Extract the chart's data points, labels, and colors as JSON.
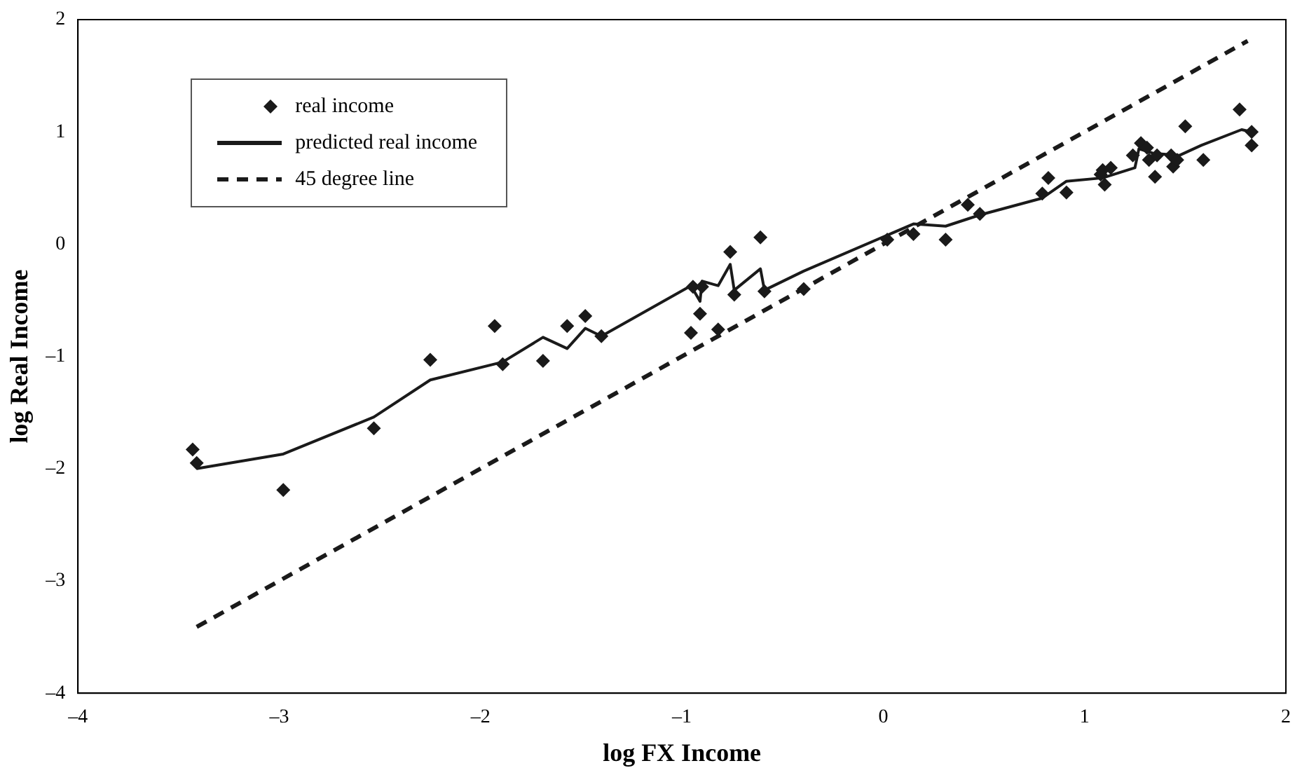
{
  "chart_data": {
    "type": "scatter",
    "xlabel": "log FX Income",
    "ylabel": "log Real Income",
    "xlim": [
      -4,
      2
    ],
    "ylim": [
      -4,
      2
    ],
    "xticks": [
      {
        "value": -4,
        "label": "–4"
      },
      {
        "value": -3,
        "label": "–3"
      },
      {
        "value": -2,
        "label": "–2"
      },
      {
        "value": -1,
        "label": "–1"
      },
      0,
      1,
      2
    ],
    "yticks": [
      {
        "value": -4,
        "label": "–4"
      },
      {
        "value": -3,
        "label": "–3"
      },
      {
        "value": -2,
        "label": "–2"
      },
      {
        "value": -1,
        "label": "–1"
      },
      0,
      1,
      2
    ],
    "grid": false,
    "legend": "top left",
    "series": [
      {
        "name": "real income",
        "marker": "diamond",
        "color": "#1a1a1a",
        "x": [
          -3.43,
          -3.41,
          -2.98,
          -2.53,
          -2.25,
          -1.93,
          -1.89,
          -1.69,
          -1.57,
          -1.48,
          -1.4,
          -0.955,
          -0.945,
          -0.9,
          -0.91,
          -0.82,
          -0.76,
          -0.74,
          -0.61,
          -0.59,
          -0.395,
          0.02,
          0.15,
          0.31,
          0.42,
          0.48,
          0.82,
          0.79,
          0.91,
          1.09,
          1.13,
          1.1,
          1.08,
          1.24,
          1.28,
          1.31,
          1.32,
          1.36,
          1.35,
          1.43,
          1.44,
          1.46,
          1.5,
          1.59,
          1.77,
          1.83,
          1.83
        ],
        "values": [
          -1.83,
          -1.95,
          -2.19,
          -1.64,
          -1.03,
          -0.73,
          -1.07,
          -1.04,
          -0.73,
          -0.64,
          -0.82,
          -0.79,
          -0.38,
          -0.38,
          -0.62,
          -0.76,
          -0.07,
          -0.45,
          0.06,
          -0.42,
          -0.4,
          0.04,
          0.09,
          0.04,
          0.35,
          0.27,
          0.59,
          0.45,
          0.46,
          0.66,
          0.68,
          0.53,
          0.62,
          0.79,
          0.9,
          0.86,
          0.75,
          0.79,
          0.6,
          0.79,
          0.69,
          0.75,
          1.05,
          0.75,
          1.2,
          1.0,
          0.88
        ]
      },
      {
        "name": "predicted real income",
        "type": "line",
        "marker": "none",
        "line_style": "solid",
        "color": "#1a1a1a",
        "x": [
          -3.41,
          -2.98,
          -2.53,
          -2.25,
          -1.89,
          -1.69,
          -1.57,
          -1.48,
          -1.4,
          -0.955,
          -0.91,
          -0.9,
          -0.82,
          -0.76,
          -0.74,
          -0.61,
          -0.59,
          -0.395,
          0.15,
          0.31,
          0.48,
          0.79,
          0.91,
          1.09,
          1.25,
          1.27,
          1.34,
          1.47,
          1.58,
          1.78,
          1.83
        ],
        "values": [
          -2.0,
          -1.87,
          -1.54,
          -1.21,
          -1.05,
          -0.83,
          -0.93,
          -0.75,
          -0.82,
          -0.37,
          -0.51,
          -0.33,
          -0.37,
          -0.18,
          -0.41,
          -0.22,
          -0.41,
          -0.24,
          0.18,
          0.16,
          0.26,
          0.41,
          0.56,
          0.59,
          0.68,
          0.85,
          0.81,
          0.79,
          0.88,
          1.02,
          1.0
        ]
      },
      {
        "name": "45 degree line",
        "type": "line",
        "marker": "none",
        "line_style": "dashed",
        "color": "#1a1a1a",
        "x": [
          -3.41,
          1.81
        ],
        "values": [
          -3.41,
          1.81
        ]
      }
    ]
  }
}
